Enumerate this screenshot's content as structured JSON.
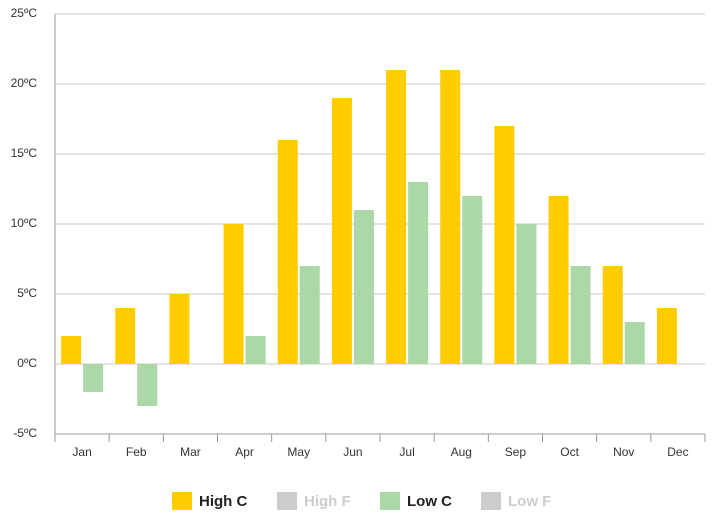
{
  "chart_data": {
    "type": "bar",
    "categories": [
      "Jan",
      "Feb",
      "Mar",
      "Apr",
      "May",
      "Jun",
      "Jul",
      "Aug",
      "Sep",
      "Oct",
      "Nov",
      "Dec"
    ],
    "series": [
      {
        "name": "High C",
        "color": "#ffcc00",
        "visible": true,
        "values": [
          2,
          4,
          5,
          10,
          16,
          19,
          21,
          21,
          17,
          12,
          7,
          4
        ]
      },
      {
        "name": "High F",
        "color": "#cccccc",
        "visible": false
      },
      {
        "name": "Low C",
        "color": "#acd8a7",
        "visible": true,
        "values": [
          -2,
          -3,
          0,
          2,
          7,
          11,
          13,
          12,
          10,
          7,
          3,
          0
        ]
      },
      {
        "name": "Low F",
        "color": "#cccccc",
        "visible": false
      }
    ],
    "ylim": [
      -5,
      25
    ],
    "yticks": [
      {
        "value": -5,
        "label": "-5ºC"
      },
      {
        "value": 0,
        "label": "0ºC"
      },
      {
        "value": 5,
        "label": "5ºC"
      },
      {
        "value": 10,
        "label": "10ºC"
      },
      {
        "value": 15,
        "label": "15ºC"
      },
      {
        "value": 20,
        "label": "20ºC"
      },
      {
        "value": 25,
        "label": "25ºC"
      }
    ],
    "grid": true
  }
}
